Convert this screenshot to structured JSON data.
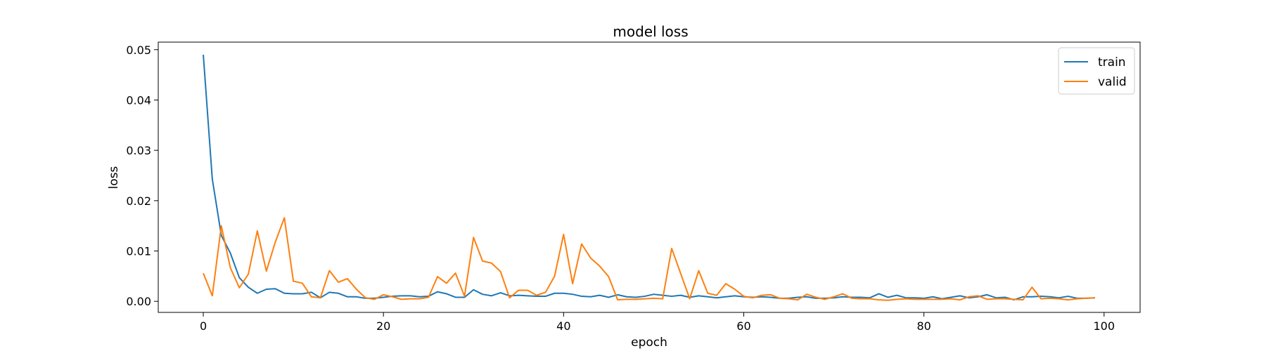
{
  "chart_data": {
    "type": "line",
    "title": "model loss",
    "xlabel": "epoch",
    "ylabel": "loss",
    "xlim": [
      -5,
      104
    ],
    "ylim": [
      -0.0022,
      0.0515
    ],
    "xticks": [
      0,
      20,
      40,
      60,
      80,
      100
    ],
    "yticks": [
      0.0,
      0.01,
      0.02,
      0.03,
      0.04,
      0.05
    ],
    "xtick_labels": [
      "0",
      "20",
      "40",
      "60",
      "80",
      "100"
    ],
    "ytick_labels": [
      "0.00",
      "0.01",
      "0.02",
      "0.03",
      "0.04",
      "0.05"
    ],
    "legend_position": "top-right",
    "grid": false,
    "series": [
      {
        "name": "train",
        "color": "#1f77b4",
        "values": [
          0.049,
          0.0243,
          0.0131,
          0.0096,
          0.0047,
          0.0028,
          0.0016,
          0.0024,
          0.0025,
          0.0016,
          0.0015,
          0.0015,
          0.0018,
          0.0007,
          0.0018,
          0.0016,
          0.0009,
          0.0009,
          0.0006,
          0.0006,
          0.0008,
          0.001,
          0.0011,
          0.0011,
          0.0009,
          0.001,
          0.0019,
          0.0015,
          0.0008,
          0.0008,
          0.0023,
          0.0014,
          0.0011,
          0.0017,
          0.0011,
          0.0012,
          0.0011,
          0.001,
          0.001,
          0.0016,
          0.0016,
          0.0014,
          0.001,
          0.0009,
          0.0012,
          0.0008,
          0.0013,
          0.0009,
          0.0008,
          0.001,
          0.0014,
          0.0012,
          0.001,
          0.0012,
          0.0008,
          0.0011,
          0.0009,
          0.0007,
          0.0009,
          0.0011,
          0.0009,
          0.0008,
          0.0009,
          0.0008,
          0.0006,
          0.0006,
          0.0008,
          0.0009,
          0.0006,
          0.0006,
          0.0007,
          0.0009,
          0.0008,
          0.0008,
          0.0007,
          0.0015,
          0.0008,
          0.0012,
          0.0007,
          0.0007,
          0.0006,
          0.0009,
          0.0005,
          0.0008,
          0.0011,
          0.0007,
          0.0009,
          0.0013,
          0.0007,
          0.0008,
          0.0003,
          0.0009,
          0.0009,
          0.001,
          0.0009,
          0.0007,
          0.001,
          0.0006,
          0.0006,
          0.0007
        ]
      },
      {
        "name": "valid",
        "color": "#ff7f0e",
        "values": [
          0.0056,
          0.0011,
          0.015,
          0.0067,
          0.0027,
          0.0054,
          0.014,
          0.006,
          0.0118,
          0.0166,
          0.004,
          0.0036,
          0.0009,
          0.0007,
          0.0061,
          0.0038,
          0.0045,
          0.0024,
          0.0007,
          0.0004,
          0.0013,
          0.0009,
          0.0004,
          0.0005,
          0.0005,
          0.0008,
          0.0049,
          0.0036,
          0.0056,
          0.001,
          0.0127,
          0.008,
          0.0076,
          0.0059,
          0.0007,
          0.0022,
          0.0022,
          0.0012,
          0.0018,
          0.005,
          0.0133,
          0.0035,
          0.0114,
          0.0086,
          0.007,
          0.0049,
          0.0003,
          0.0004,
          0.0004,
          0.0005,
          0.0006,
          0.0005,
          0.0105,
          0.0055,
          0.0005,
          0.0061,
          0.0016,
          0.0012,
          0.0035,
          0.0024,
          0.001,
          0.0007,
          0.0012,
          0.0013,
          0.0006,
          0.0005,
          0.0003,
          0.0014,
          0.0008,
          0.0004,
          0.0009,
          0.0015,
          0.0006,
          0.0005,
          0.0005,
          0.0003,
          0.0002,
          0.0004,
          0.0005,
          0.0004,
          0.0004,
          0.0004,
          0.0004,
          0.0005,
          0.0003,
          0.0009,
          0.0011,
          0.0004,
          0.0005,
          0.0005,
          0.0004,
          0.0003,
          0.0028,
          0.0005,
          0.0006,
          0.0005,
          0.0003,
          0.0005,
          0.0006,
          0.0007
        ]
      }
    ]
  }
}
